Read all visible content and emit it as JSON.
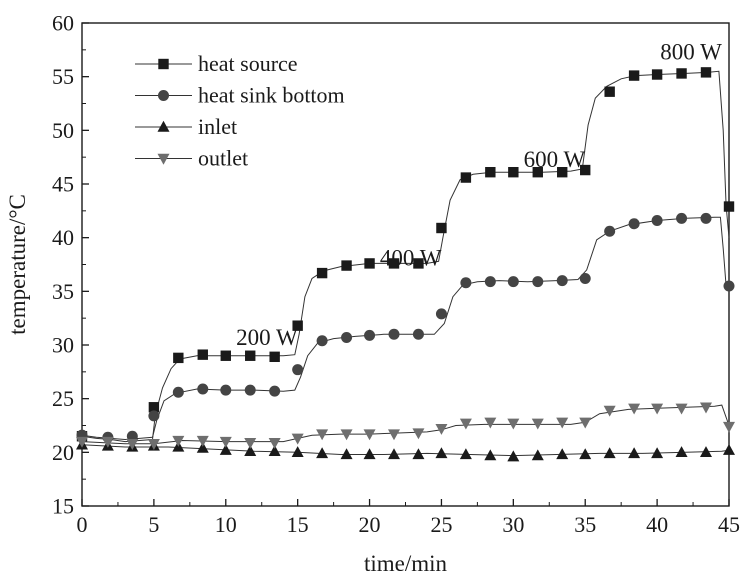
{
  "chart_data": {
    "type": "line",
    "title": "",
    "xlabel": "time/min",
    "ylabel": "temperature/°C",
    "xlim": [
      0,
      45
    ],
    "ylim": [
      15,
      60
    ],
    "xticks": [
      0,
      5,
      10,
      15,
      20,
      25,
      30,
      35,
      40,
      45
    ],
    "yticks": [
      15,
      20,
      25,
      30,
      35,
      40,
      45,
      50,
      55,
      60
    ],
    "grid": false,
    "legend_position": "top-left",
    "annotations": [
      {
        "text": "200 W",
        "x": 15.0,
        "y": 30.0
      },
      {
        "text": "400 W",
        "x": 25.0,
        "y": 37.4
      },
      {
        "text": "600 W",
        "x": 35.0,
        "y": 46.6
      },
      {
        "text": "800 W",
        "x": 44.5,
        "y": 56.6
      }
    ],
    "series": [
      {
        "name": "heat source",
        "marker": "square",
        "color": "#1a1a1a",
        "line": [
          [
            0,
            21.5
          ],
          [
            1,
            21.3
          ],
          [
            2,
            21.2
          ],
          [
            3,
            21.0
          ],
          [
            4,
            21.1
          ],
          [
            4.9,
            21.2
          ],
          [
            5.1,
            23.5
          ],
          [
            5.6,
            26.0
          ],
          [
            6.2,
            27.8
          ],
          [
            6.8,
            28.7
          ],
          [
            8,
            29.0
          ],
          [
            10,
            29.0
          ],
          [
            12,
            29.0
          ],
          [
            14,
            29.0
          ],
          [
            14.8,
            29.1
          ],
          [
            15.1,
            31.0
          ],
          [
            15.5,
            34.5
          ],
          [
            16,
            36.2
          ],
          [
            16.8,
            36.9
          ],
          [
            18,
            37.3
          ],
          [
            20,
            37.6
          ],
          [
            22,
            37.6
          ],
          [
            24,
            37.6
          ],
          [
            24.8,
            37.8
          ],
          [
            25.1,
            40.0
          ],
          [
            25.6,
            43.5
          ],
          [
            26.3,
            45.4
          ],
          [
            27.2,
            45.9
          ],
          [
            28.5,
            46.1
          ],
          [
            30,
            46.1
          ],
          [
            32,
            46.1
          ],
          [
            34,
            46.2
          ],
          [
            34.8,
            46.4
          ],
          [
            35.2,
            50.5
          ],
          [
            35.7,
            53.0
          ],
          [
            36.5,
            54.1
          ],
          [
            37.5,
            54.8
          ],
          [
            38.5,
            55.1
          ],
          [
            40,
            55.2
          ],
          [
            42,
            55.3
          ],
          [
            43.5,
            55.4
          ],
          [
            44.3,
            55.5
          ],
          [
            44.6,
            50.0
          ],
          [
            44.8,
            43.0
          ],
          [
            45,
            40.0
          ]
        ],
        "markers": [
          [
            0,
            21.5
          ],
          [
            5,
            24.2
          ],
          [
            6.7,
            28.8
          ],
          [
            8.4,
            29.1
          ],
          [
            10,
            29.0
          ],
          [
            11.7,
            29.0
          ],
          [
            13.4,
            28.9
          ],
          [
            15,
            31.8
          ],
          [
            16.7,
            36.7
          ],
          [
            18.4,
            37.4
          ],
          [
            20,
            37.6
          ],
          [
            21.7,
            37.6
          ],
          [
            23.4,
            37.6
          ],
          [
            25,
            40.9
          ],
          [
            26.7,
            45.6
          ],
          [
            28.4,
            46.1
          ],
          [
            30,
            46.1
          ],
          [
            31.7,
            46.1
          ],
          [
            33.4,
            46.1
          ],
          [
            35,
            46.3
          ],
          [
            36.7,
            53.6
          ],
          [
            38.4,
            55.1
          ],
          [
            40,
            55.2
          ],
          [
            41.7,
            55.3
          ],
          [
            43.4,
            55.4
          ],
          [
            45,
            42.9
          ]
        ]
      },
      {
        "name": "heat sink bottom",
        "marker": "circle",
        "color": "#444444",
        "line": [
          [
            0,
            21.6
          ],
          [
            1,
            21.4
          ],
          [
            2,
            21.3
          ],
          [
            3,
            21.2
          ],
          [
            4,
            21.3
          ],
          [
            4.9,
            21.4
          ],
          [
            5.2,
            23.0
          ],
          [
            5.7,
            24.8
          ],
          [
            6.5,
            25.5
          ],
          [
            8,
            25.9
          ],
          [
            10,
            25.8
          ],
          [
            12,
            25.8
          ],
          [
            14,
            25.7
          ],
          [
            14.8,
            25.8
          ],
          [
            15.2,
            27.0
          ],
          [
            15.7,
            29.0
          ],
          [
            16.4,
            30.2
          ],
          [
            17.5,
            30.6
          ],
          [
            19,
            30.8
          ],
          [
            21,
            31.0
          ],
          [
            23,
            31.0
          ],
          [
            24.5,
            31.0
          ],
          [
            25.2,
            32.0
          ],
          [
            25.8,
            34.5
          ],
          [
            26.5,
            35.6
          ],
          [
            27.5,
            35.9
          ],
          [
            29,
            36.0
          ],
          [
            31,
            35.9
          ],
          [
            33,
            36.0
          ],
          [
            34.5,
            36.1
          ],
          [
            35.1,
            37.0
          ],
          [
            35.8,
            39.8
          ],
          [
            36.7,
            40.6
          ],
          [
            38,
            41.2
          ],
          [
            40,
            41.6
          ],
          [
            42,
            41.8
          ],
          [
            44,
            41.9
          ],
          [
            44.4,
            41.9
          ],
          [
            44.6,
            39.0
          ],
          [
            44.8,
            35.5
          ],
          [
            45,
            35.0
          ]
        ],
        "markers": [
          [
            0,
            21.6
          ],
          [
            1.8,
            21.4
          ],
          [
            3.5,
            21.5
          ],
          [
            5,
            23.4
          ],
          [
            6.7,
            25.6
          ],
          [
            8.4,
            25.9
          ],
          [
            10,
            25.8
          ],
          [
            11.7,
            25.8
          ],
          [
            13.4,
            25.7
          ],
          [
            15,
            27.7
          ],
          [
            16.7,
            30.4
          ],
          [
            18.4,
            30.7
          ],
          [
            20,
            30.9
          ],
          [
            21.7,
            31.0
          ],
          [
            23.4,
            31.0
          ],
          [
            25,
            32.9
          ],
          [
            26.7,
            35.8
          ],
          [
            28.4,
            35.9
          ],
          [
            30,
            35.9
          ],
          [
            31.7,
            35.9
          ],
          [
            33.4,
            36.0
          ],
          [
            35,
            36.2
          ],
          [
            36.7,
            40.6
          ],
          [
            38.4,
            41.3
          ],
          [
            40,
            41.6
          ],
          [
            41.7,
            41.8
          ],
          [
            43.4,
            41.8
          ],
          [
            45,
            35.5
          ]
        ]
      },
      {
        "name": "inlet",
        "marker": "triangle-up",
        "color": "#1a1a1a",
        "line": [
          [
            0,
            20.7
          ],
          [
            3,
            20.5
          ],
          [
            6,
            20.5
          ],
          [
            9,
            20.3
          ],
          [
            12,
            20.1
          ],
          [
            15,
            20.0
          ],
          [
            18,
            19.8
          ],
          [
            21,
            19.8
          ],
          [
            24,
            19.9
          ],
          [
            27,
            19.8
          ],
          [
            30,
            19.7
          ],
          [
            33,
            19.8
          ],
          [
            36,
            19.9
          ],
          [
            39,
            19.9
          ],
          [
            42,
            20.0
          ],
          [
            44.5,
            20.1
          ],
          [
            45,
            20.2
          ]
        ],
        "markers": [
          [
            0,
            20.7
          ],
          [
            1.8,
            20.6
          ],
          [
            3.5,
            20.5
          ],
          [
            5,
            20.6
          ],
          [
            6.7,
            20.5
          ],
          [
            8.4,
            20.4
          ],
          [
            10,
            20.2
          ],
          [
            11.7,
            20.1
          ],
          [
            13.4,
            20.1
          ],
          [
            15,
            20.0
          ],
          [
            16.7,
            19.9
          ],
          [
            18.4,
            19.8
          ],
          [
            20,
            19.8
          ],
          [
            21.7,
            19.8
          ],
          [
            23.4,
            19.8
          ],
          [
            25,
            19.9
          ],
          [
            26.7,
            19.8
          ],
          [
            28.4,
            19.7
          ],
          [
            30,
            19.6
          ],
          [
            31.7,
            19.7
          ],
          [
            33.4,
            19.8
          ],
          [
            35,
            19.8
          ],
          [
            36.7,
            19.9
          ],
          [
            38.4,
            19.9
          ],
          [
            40,
            19.9
          ],
          [
            41.7,
            20.0
          ],
          [
            43.4,
            20.0
          ],
          [
            45,
            20.2
          ]
        ]
      },
      {
        "name": "outlet",
        "marker": "triangle-down",
        "color": "#6e6e6e",
        "line": [
          [
            0,
            21.0
          ],
          [
            3,
            20.8
          ],
          [
            5,
            20.8
          ],
          [
            7,
            21.1
          ],
          [
            10,
            21.0
          ],
          [
            12,
            21.0
          ],
          [
            14,
            21.0
          ],
          [
            15,
            21.3
          ],
          [
            16,
            21.6
          ],
          [
            18,
            21.7
          ],
          [
            20,
            21.7
          ],
          [
            22,
            21.8
          ],
          [
            24,
            21.9
          ],
          [
            25,
            22.1
          ],
          [
            26,
            22.5
          ],
          [
            28,
            22.6
          ],
          [
            30,
            22.6
          ],
          [
            32,
            22.6
          ],
          [
            34,
            22.6
          ],
          [
            35,
            22.8
          ],
          [
            36,
            23.6
          ],
          [
            38,
            24.0
          ],
          [
            40,
            24.1
          ],
          [
            42,
            24.2
          ],
          [
            44,
            24.3
          ],
          [
            44.5,
            24.4
          ],
          [
            45,
            22.5
          ]
        ],
        "markers": [
          [
            0,
            21.0
          ],
          [
            1.8,
            21.0
          ],
          [
            3.5,
            20.8
          ],
          [
            5,
            20.8
          ],
          [
            6.7,
            21.1
          ],
          [
            8.4,
            21.1
          ],
          [
            10,
            21.0
          ],
          [
            11.7,
            20.9
          ],
          [
            13.4,
            20.9
          ],
          [
            15,
            21.3
          ],
          [
            16.7,
            21.7
          ],
          [
            18.4,
            21.7
          ],
          [
            20,
            21.7
          ],
          [
            21.7,
            21.7
          ],
          [
            23.4,
            21.8
          ],
          [
            25,
            22.2
          ],
          [
            26.7,
            22.7
          ],
          [
            28.4,
            22.8
          ],
          [
            30,
            22.7
          ],
          [
            31.7,
            22.7
          ],
          [
            33.4,
            22.8
          ],
          [
            35,
            22.8
          ],
          [
            36.7,
            23.9
          ],
          [
            38.4,
            24.1
          ],
          [
            40,
            24.1
          ],
          [
            41.7,
            24.1
          ],
          [
            43.4,
            24.2
          ],
          [
            45,
            22.4
          ]
        ]
      }
    ]
  }
}
